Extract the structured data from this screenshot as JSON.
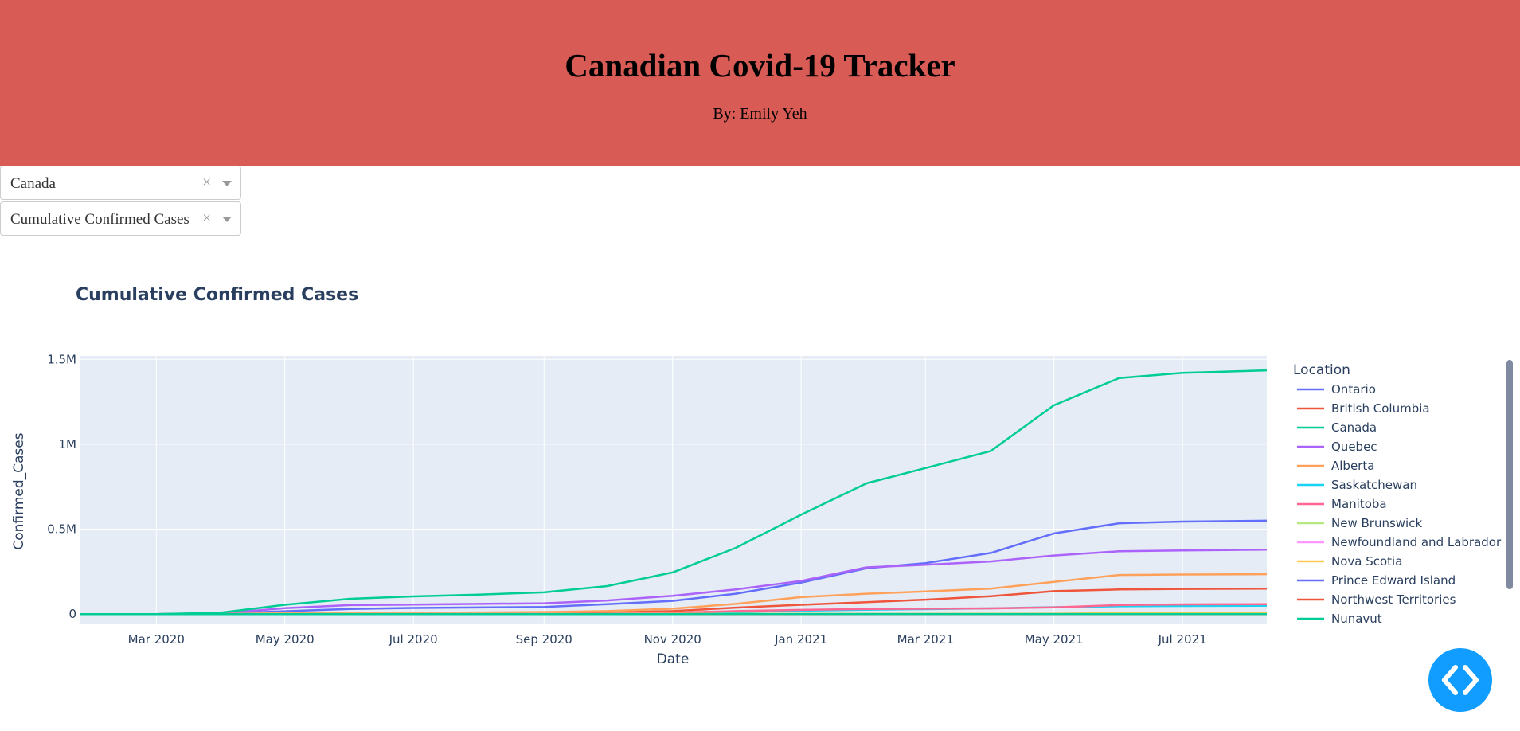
{
  "header": {
    "title": "Canadian Covid-19 Tracker",
    "author": "By: Emily Yeh"
  },
  "controls": {
    "location_dropdown": {
      "value": "Canada",
      "clear_icon": "×"
    },
    "metric_dropdown": {
      "value": "Cumulative Confirmed Cases",
      "clear_icon": "×"
    }
  },
  "chart_data": {
    "type": "line",
    "title": "Cumulative Confirmed Cases",
    "xlabel": "Date",
    "ylabel": "Confirmed_Cases",
    "x_ticks": [
      "Mar 2020",
      "May 2020",
      "Jul 2020",
      "Sep 2020",
      "Nov 2020",
      "Jan 2021",
      "Mar 2021",
      "May 2021",
      "Jul 2021"
    ],
    "y_ticks": [
      "0",
      "0.5M",
      "1M",
      "1.5M"
    ],
    "ylim": [
      -60000,
      1520000
    ],
    "xlim": [
      "2020-01-25",
      "2021-08-10"
    ],
    "grid": true,
    "legend_title": "Location",
    "legend_position": "right",
    "x": [
      "2020-01-25",
      "2020-03-01",
      "2020-04-01",
      "2020-05-01",
      "2020-06-01",
      "2020-07-01",
      "2020-08-01",
      "2020-09-01",
      "2020-10-01",
      "2020-11-01",
      "2020-12-01",
      "2021-01-01",
      "2021-02-01",
      "2021-03-01",
      "2021-04-01",
      "2021-05-01",
      "2021-06-01",
      "2021-07-01",
      "2021-08-10"
    ],
    "series": [
      {
        "name": "Ontario",
        "color": "#636efa",
        "values": [
          0,
          0,
          5000,
          17000,
          30000,
          36000,
          39000,
          42000,
          58000,
          78000,
          120000,
          185000,
          270000,
          300000,
          360000,
          475000,
          535000,
          545000,
          550000
        ]
      },
      {
        "name": "British Columbia",
        "color": "#ef553b",
        "values": [
          0,
          0,
          1000,
          2000,
          2700,
          3000,
          3600,
          5000,
          9000,
          18000,
          38000,
          55000,
          70000,
          85000,
          105000,
          135000,
          145000,
          148000,
          150000
        ]
      },
      {
        "name": "Canada",
        "color": "#00cc96",
        "values": [
          0,
          0,
          9000,
          55000,
          90000,
          104000,
          115000,
          128000,
          165000,
          245000,
          390000,
          585000,
          770000,
          860000,
          960000,
          1230000,
          1390000,
          1420000,
          1435000
        ]
      },
      {
        "name": "Quebec",
        "color": "#ab63fa",
        "values": [
          0,
          0,
          5000,
          35000,
          53000,
          56000,
          60000,
          64000,
          80000,
          108000,
          145000,
          195000,
          275000,
          290000,
          310000,
          345000,
          370000,
          375000,
          380000
        ]
      },
      {
        "name": "Alberta",
        "color": "#ffa15a",
        "values": [
          0,
          0,
          1000,
          6000,
          7000,
          8000,
          10000,
          12000,
          18000,
          32000,
          60000,
          100000,
          120000,
          133000,
          150000,
          190000,
          230000,
          233000,
          235000
        ]
      },
      {
        "name": "Saskatchewan",
        "color": "#19d3f3",
        "values": [
          0,
          0,
          200,
          600,
          700,
          900,
          1300,
          1700,
          2500,
          5000,
          12000,
          20000,
          26000,
          29000,
          34000,
          41000,
          46000,
          48000,
          49000
        ]
      },
      {
        "name": "Manitoba",
        "color": "#ff6692",
        "values": [
          0,
          0,
          200,
          300,
          300,
          400,
          600,
          1200,
          2500,
          8000,
          18000,
          25000,
          30000,
          32000,
          34000,
          40000,
          53000,
          57000,
          58000
        ]
      },
      {
        "name": "New Brunswick",
        "color": "#b6e880",
        "values": [
          0,
          0,
          100,
          120,
          150,
          160,
          170,
          190,
          250,
          330,
          500,
          700,
          1200,
          1450,
          1600,
          2000,
          2300,
          2400,
          2500
        ]
      },
      {
        "name": "Newfoundland and Labrador",
        "color": "#ff97ff",
        "values": [
          0,
          0,
          200,
          250,
          260,
          260,
          265,
          270,
          280,
          300,
          340,
          390,
          800,
          1000,
          1050,
          1150,
          1300,
          1400,
          1450
        ]
      },
      {
        "name": "Nova Scotia",
        "color": "#fecb52",
        "values": [
          0,
          0,
          100,
          1000,
          1060,
          1070,
          1080,
          1090,
          1100,
          1200,
          1400,
          1500,
          1600,
          1700,
          1800,
          3000,
          5500,
          5800,
          5900
        ]
      },
      {
        "name": "Prince Edward Island",
        "color": "#636efa",
        "values": [
          0,
          0,
          20,
          25,
          27,
          30,
          35,
          40,
          60,
          64,
          90,
          100,
          110,
          140,
          160,
          180,
          200,
          205,
          210
        ]
      },
      {
        "name": "Northwest Territories",
        "color": "#ef553b",
        "values": [
          0,
          0,
          5,
          5,
          5,
          5,
          5,
          5,
          10,
          15,
          20,
          25,
          40,
          45,
          50,
          60,
          100,
          110,
          130
        ]
      },
      {
        "name": "Nunavut",
        "color": "#00cc96",
        "values": [
          0,
          0,
          0,
          0,
          0,
          0,
          0,
          0,
          0,
          200,
          260,
          270,
          300,
          350,
          500,
          600,
          650,
          660,
          660
        ]
      }
    ]
  },
  "fab": {
    "icon": "code-icon",
    "color": "#119dff"
  }
}
